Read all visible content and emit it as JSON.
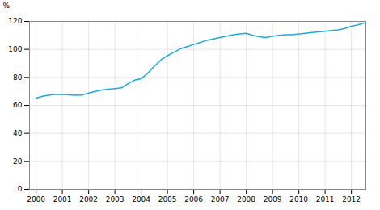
{
  "chart_data": {
    "type": "line",
    "ylabel": "%",
    "color": "#1aabdb",
    "x": [
      2000.0,
      2000.25,
      2000.5,
      2000.75,
      2001.0,
      2001.25,
      2001.5,
      2001.75,
      2002.0,
      2002.25,
      2002.5,
      2002.75,
      2003.0,
      2003.25,
      2003.5,
      2003.75,
      2004.0,
      2004.25,
      2004.5,
      2004.75,
      2005.0,
      2005.25,
      2005.5,
      2005.75,
      2006.0,
      2006.25,
      2006.5,
      2006.75,
      2007.0,
      2007.25,
      2007.5,
      2007.75,
      2008.0,
      2008.25,
      2008.5,
      2008.75,
      2009.0,
      2009.25,
      2009.5,
      2009.75,
      2010.0,
      2010.25,
      2010.5,
      2010.75,
      2011.0,
      2011.25,
      2011.5,
      2011.75,
      2012.0,
      2012.25,
      2012.5
    ],
    "values": [
      65.2,
      66.5,
      67.3,
      67.8,
      68.0,
      67.5,
      67.2,
      67.3,
      68.8,
      70.0,
      71.0,
      71.5,
      72.0,
      72.5,
      75.5,
      78.0,
      79.0,
      83.0,
      88.0,
      92.5,
      95.5,
      98.0,
      100.5,
      102.0,
      103.5,
      105.0,
      106.5,
      107.5,
      108.5,
      109.5,
      110.5,
      111.0,
      111.5,
      110.0,
      109.0,
      108.5,
      109.5,
      110.0,
      110.5,
      110.5,
      111.0,
      111.5,
      112.0,
      112.5,
      113.0,
      113.5,
      114.0,
      115.0,
      116.5,
      117.5,
      119.0
    ],
    "xlim": [
      1999.75,
      2012.55
    ],
    "xticks": [
      2000,
      2001,
      2002,
      2003,
      2004,
      2005,
      2006,
      2007,
      2008,
      2009,
      2010,
      2011,
      2012
    ],
    "ylim": [
      0,
      120
    ],
    "yticks": [
      0,
      20,
      40,
      60,
      80,
      100,
      120
    ],
    "grid": true
  }
}
